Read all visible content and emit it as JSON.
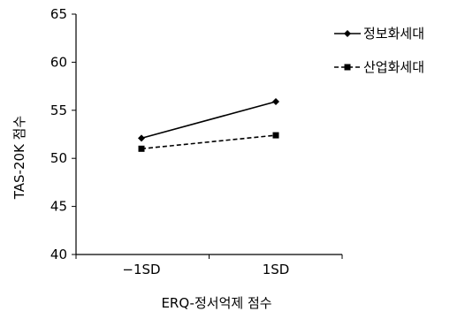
{
  "chart_data": {
    "type": "line",
    "title": "",
    "xlabel": "ERQ-정서억제 점수",
    "ylabel": "TAS-20K 점수",
    "categories": [
      "-1SD",
      "1SD"
    ],
    "ylim": [
      40,
      65
    ],
    "yticks": [
      40,
      45,
      50,
      55,
      60,
      65
    ],
    "grid": false,
    "legend_position": "top-right",
    "series": [
      {
        "name": "정보화세대",
        "values": [
          52.1,
          55.9
        ],
        "color": "#000000",
        "line_style": "solid",
        "marker": "diamond"
      },
      {
        "name": "산업화세대",
        "values": [
          51.0,
          52.4
        ],
        "color": "#000000",
        "line_style": "dashed",
        "marker": "square"
      }
    ]
  }
}
